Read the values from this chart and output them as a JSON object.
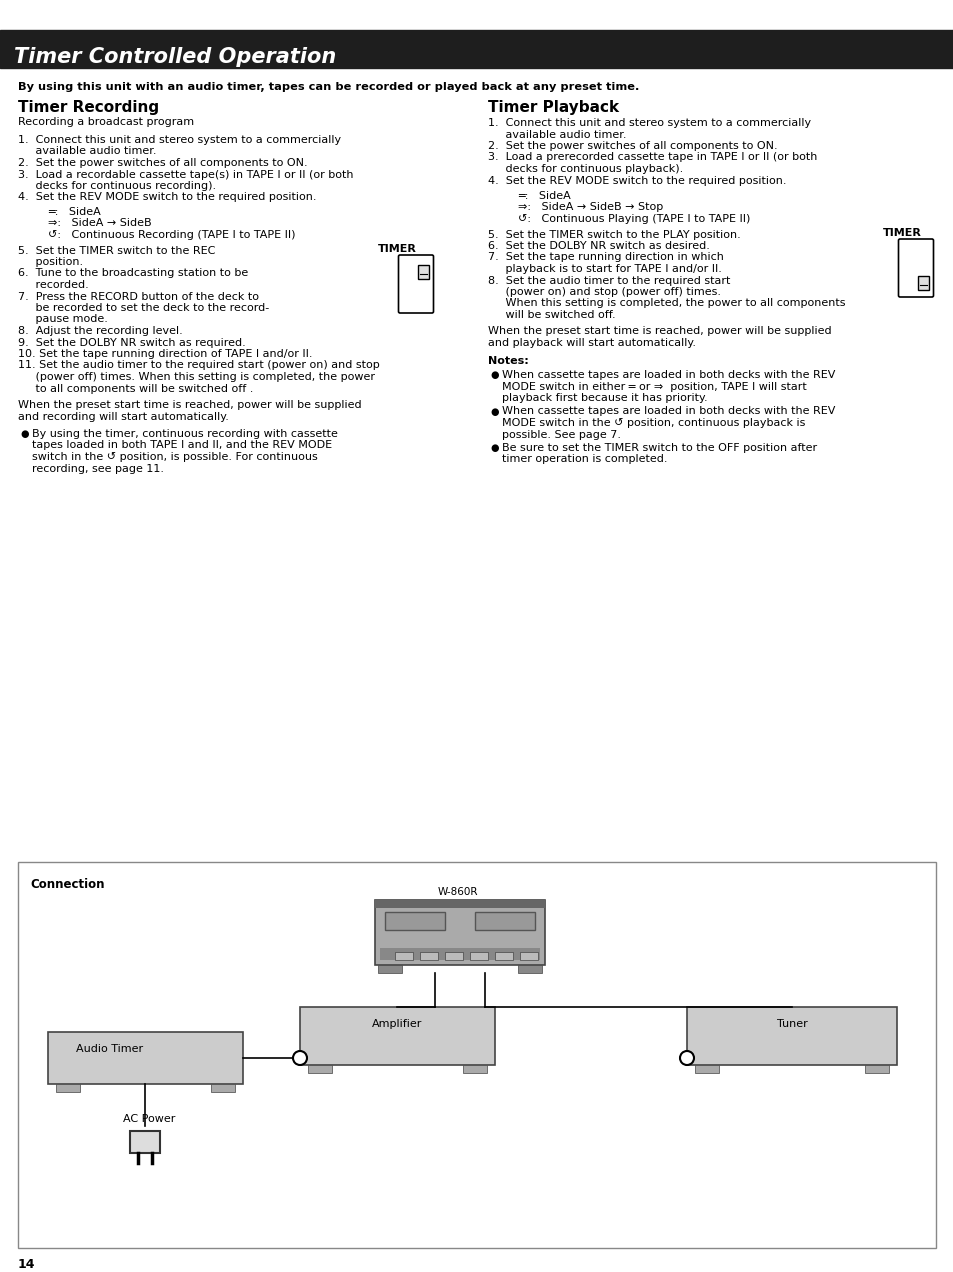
{
  "page_bg": "#ffffff",
  "header_bg": "#1e1e1e",
  "header_text": "Timer Controlled Operation",
  "header_text_color": "#ffffff",
  "intro_text": "By using this unit with an audio timer, tapes can be recorded or played back at any preset time.",
  "left_section_title": "Timer Recording",
  "left_subtitle": "Recording a broadcast program",
  "right_section_title": "Timer Playback",
  "page_number": "14",
  "connection_label": "Connection",
  "w860r_label": "W-860R",
  "amplifier_label": "Amplifier",
  "tuner_label": "Tuner",
  "audio_timer_label": "Audio Timer",
  "ac_power_label": "AC Power"
}
